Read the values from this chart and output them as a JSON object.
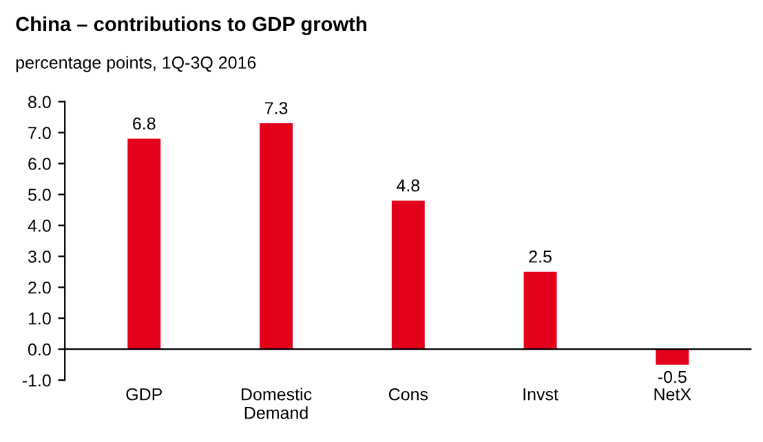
{
  "chart_data": {
    "type": "bar",
    "title": "China – contributions to GDP growth",
    "subtitle": "percentage points, 1Q-3Q 2016",
    "categories": [
      "GDP",
      "Domestic\nDemand",
      "Cons",
      "Invst",
      "NetX"
    ],
    "values": [
      6.8,
      7.3,
      4.8,
      2.5,
      -0.5
    ],
    "color": "#e2001a",
    "ylim": [
      -1,
      8
    ],
    "yticks": [
      {
        "value": -1,
        "label": "-1.0"
      },
      {
        "value": 0,
        "label": "0.0"
      },
      {
        "value": 1,
        "label": "1.0"
      },
      {
        "value": 2,
        "label": "2.0"
      },
      {
        "value": 3,
        "label": "3.0"
      },
      {
        "value": 4,
        "label": "4.0"
      },
      {
        "value": 5,
        "label": "5.0"
      },
      {
        "value": 6,
        "label": "6.0"
      },
      {
        "value": 7,
        "label": "7.0"
      },
      {
        "value": 8,
        "label": "8.0"
      }
    ],
    "data_labels": true,
    "grid": false,
    "legend": false
  }
}
